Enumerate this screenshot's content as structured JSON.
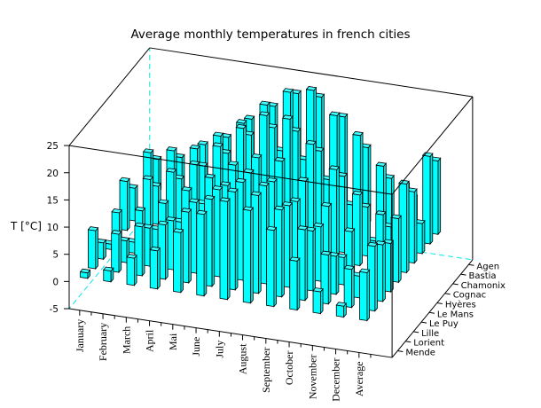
{
  "chart_data": {
    "type": "bar3d",
    "title": "Average monthly temperatures in french cities",
    "zlabel": "T [°C]",
    "zlim": [
      -5,
      25
    ],
    "z_ticks": [
      "-5",
      "0",
      "5",
      "10",
      "15",
      "20",
      "25"
    ],
    "categories": [
      "January",
      "February",
      "March",
      "April",
      "Mai",
      "June",
      "July",
      "August",
      "September",
      "October",
      "November",
      "December",
      "Average"
    ],
    "series": [
      {
        "name": "Mende",
        "values": [
          1,
          2,
          5,
          7,
          11,
          15,
          18,
          17,
          14,
          9,
          4,
          2,
          8.8
        ]
      },
      {
        "name": "Lorient",
        "values": [
          7,
          7,
          9,
          10,
          13,
          16,
          18,
          18,
          16,
          13,
          9,
          7,
          11.9
        ]
      },
      {
        "name": "Lille",
        "values": [
          3,
          4,
          7,
          9,
          13,
          16,
          18,
          18,
          15,
          11,
          7,
          4,
          10.4
        ]
      },
      {
        "name": "Le Puy",
        "values": [
          1,
          2,
          5,
          7,
          11,
          15,
          18,
          17,
          14,
          10,
          5,
          2,
          8.9
        ]
      },
      {
        "name": "Le Mans",
        "values": [
          5,
          6,
          8,
          11,
          14,
          17,
          19,
          19,
          16,
          12,
          8,
          5,
          11.7
        ]
      },
      {
        "name": "Hyères",
        "values": [
          9,
          10,
          12,
          14,
          18,
          22,
          25,
          25,
          21,
          17,
          13,
          10,
          16.3
        ]
      },
      {
        "name": "Cognac",
        "values": [
          6,
          7,
          9,
          12,
          15,
          19,
          21,
          21,
          18,
          14,
          9,
          6,
          13.1
        ]
      },
      {
        "name": "Chamonix",
        "values": [
          -4,
          -3,
          1,
          5,
          9,
          13,
          15,
          14,
          11,
          7,
          1,
          -3,
          5.5
        ]
      },
      {
        "name": "Bastia",
        "values": [
          9,
          10,
          11,
          14,
          17,
          21,
          24,
          25,
          21,
          18,
          13,
          10,
          16.1
        ]
      },
      {
        "name": "Agen",
        "values": [
          6,
          7,
          10,
          12,
          16,
          19,
          22,
          22,
          19,
          14,
          9,
          6,
          13.5
        ]
      }
    ],
    "colors": {
      "bar": "#00ffff",
      "bar_side": "#00dcdc",
      "bar_top": "#40ffff",
      "back_axes": "#00e8e8"
    }
  }
}
